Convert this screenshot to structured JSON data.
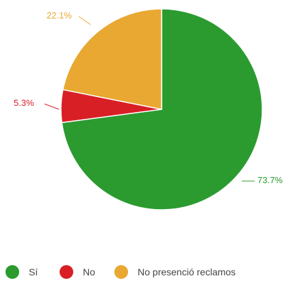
{
  "chart_data": {
    "type": "pie",
    "title": "",
    "slices": [
      {
        "label": "Sí",
        "value": 73.7,
        "value_label": "73.7%",
        "color": "#2b9b2f"
      },
      {
        "label": "No",
        "value": 5.3,
        "value_label": "5.3%",
        "color": "#d91f26"
      },
      {
        "label": "No presenció reclamos",
        "value": 22.1,
        "value_label": "22.1%",
        "color": "#e8a832"
      }
    ],
    "start": "top, clockwise",
    "legend_placement": "bottom"
  }
}
